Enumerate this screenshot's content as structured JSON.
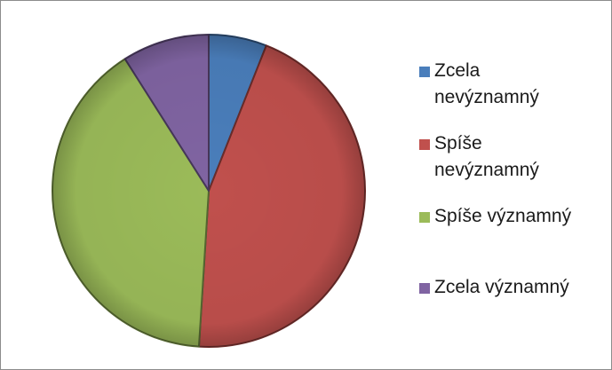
{
  "chart_data": {
    "type": "pie",
    "slices": [
      {
        "label": "Zcela nevýznamný",
        "value": 6,
        "color": "#4a7ebb"
      },
      {
        "label": "Spíše nevýznamný",
        "value": 45,
        "color": "#c0504d"
      },
      {
        "label": "Spíše významný",
        "value": 40,
        "color": "#9bbb59"
      },
      {
        "label": "Zcela významný",
        "value": 9,
        "color": "#8064a2"
      }
    ],
    "legend_position": "right"
  },
  "legend": {
    "items": [
      {
        "label_line1": "Zcela",
        "label_line2": "nevýznamný",
        "color": "#4a7ebb"
      },
      {
        "label_line1": "Spíše",
        "label_line2": "nevýznamný",
        "color": "#c0504d"
      },
      {
        "label_line1": "Spíše významný",
        "label_line2": "",
        "color": "#9bbb59"
      },
      {
        "label_line1": "Zcela významný",
        "label_line2": "",
        "color": "#8064a2"
      }
    ]
  }
}
